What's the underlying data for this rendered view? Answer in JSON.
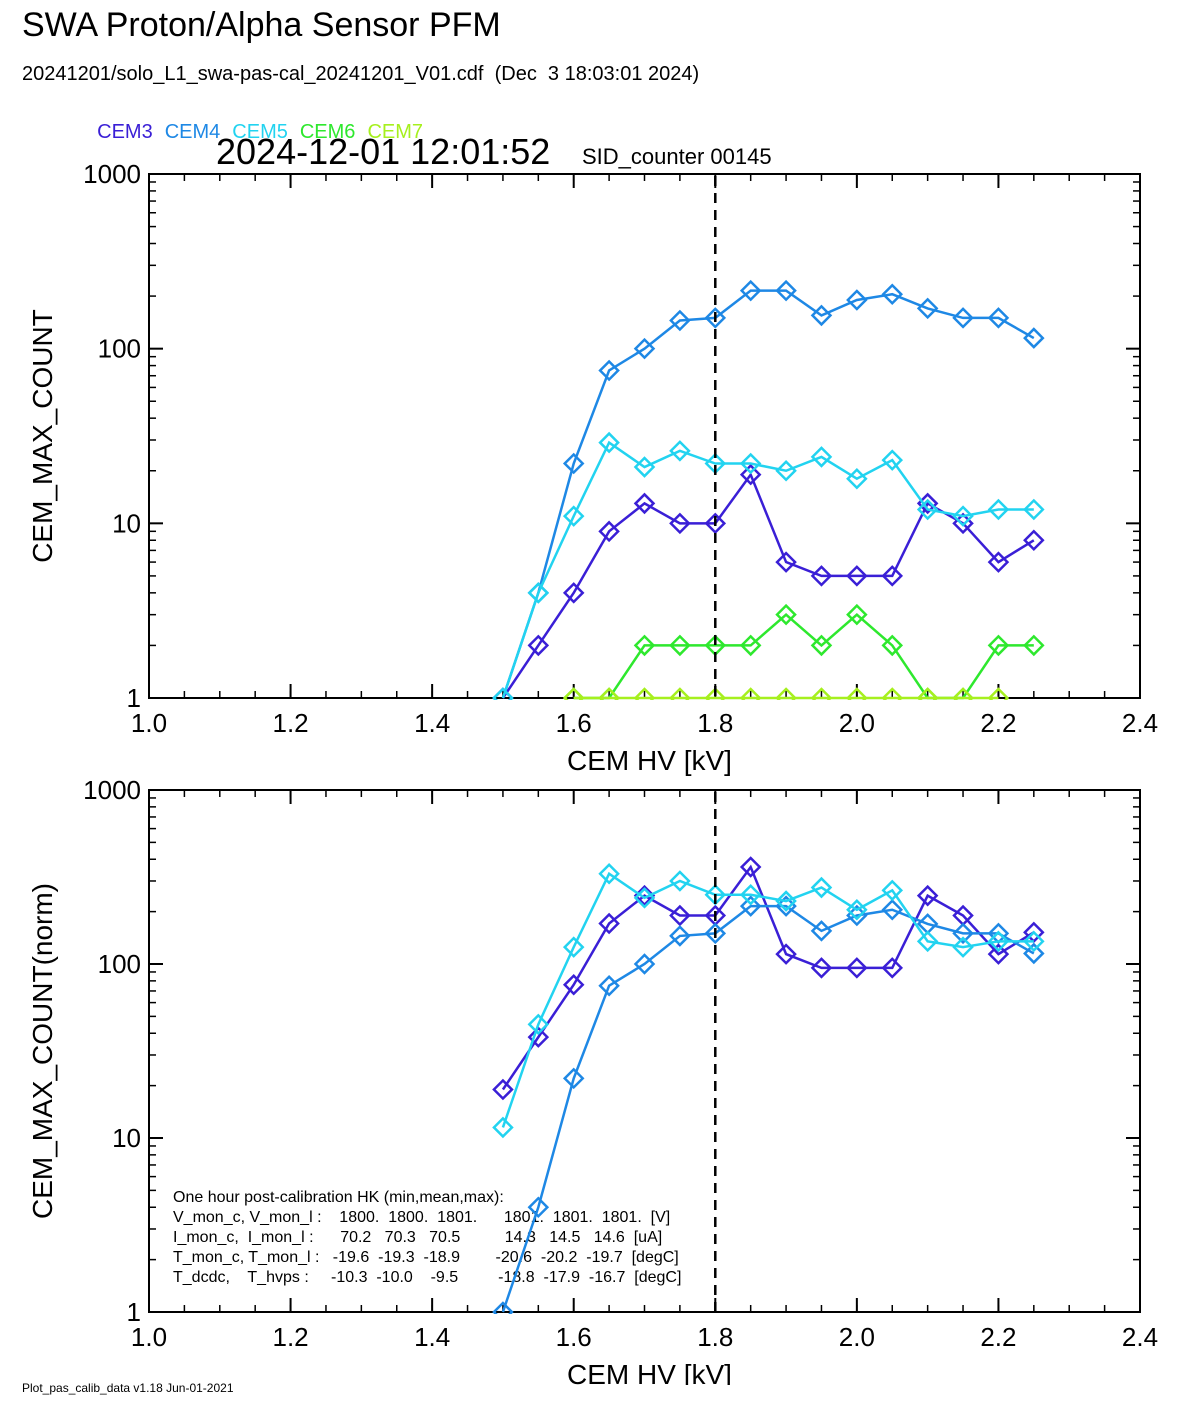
{
  "header": {
    "title": "SWA Proton/Alpha Sensor PFM",
    "file_line": "20241201/solo_L1_swa-pas-cal_20241201_V01.cdf  (Dec  3 18:03:01 2024)",
    "timestamp": "2024-12-01 12:01:52",
    "sid_counter": "SID_counter 00145"
  },
  "legend": [
    {
      "label": "CEM3",
      "color": "#3a1fd6"
    },
    {
      "label": "CEM4",
      "color": "#1e88e5"
    },
    {
      "label": "CEM5",
      "color": "#22d3f0"
    },
    {
      "label": "CEM6",
      "color": "#2ee82e"
    },
    {
      "label": "CEM7",
      "color": "#a6f01e"
    }
  ],
  "footer": "Plot_pas_calib_data v1.18 Jun-01-2021",
  "hk_box": {
    "lines": [
      "One hour post-calibration HK (min,mean,max):",
      "V_mon_c, V_mon_l :    1800.  1800.  1801.      1801.  1801.  1801.  [V]",
      "I_mon_c,  I_mon_l :      70.2   70.3   70.5          14.3   14.5   14.6  [uA]",
      "T_mon_c, T_mon_l :   -19.6  -19.3  -18.9        -20.6  -20.2  -19.7  [degC]",
      "T_dcdc,    T_hvps :     -10.3  -10.0    -9.5         -18.8  -17.9  -16.7  [degC]"
    ]
  },
  "chart_data": [
    {
      "type": "line",
      "xlabel": "CEM HV [kV]",
      "ylabel": "CEM_MAX_COUNT",
      "xlim": [
        1.0,
        2.4
      ],
      "ylim": [
        1,
        1000
      ],
      "yscale": "log",
      "xticks": [
        "1.0",
        "1.2",
        "1.4",
        "1.6",
        "1.8",
        "2.0",
        "2.2",
        "2.4"
      ],
      "yticks": [
        "1",
        "10",
        "100",
        "1000"
      ],
      "vline_x": 1.8,
      "marker": "diamond",
      "x": [
        1.5,
        1.55,
        1.6,
        1.65,
        1.7,
        1.75,
        1.8,
        1.85,
        1.9,
        1.95,
        2.0,
        2.05,
        2.1,
        2.15,
        2.2,
        2.25
      ],
      "series": [
        {
          "name": "CEM3",
          "color": "#3a1fd6",
          "values": [
            1,
            2,
            4,
            9,
            13,
            10,
            10,
            19,
            6,
            5,
            5,
            5,
            13,
            10,
            6,
            8
          ]
        },
        {
          "name": "CEM4",
          "color": "#1e88e5",
          "values": [
            1,
            4,
            22,
            75,
            100,
            145,
            150,
            215,
            215,
            155,
            190,
            205,
            170,
            150,
            150,
            115
          ]
        },
        {
          "name": "CEM5",
          "color": "#22d3f0",
          "values": [
            1,
            4,
            11,
            29,
            21,
            26,
            22,
            22,
            20,
            24,
            18,
            23,
            12,
            11,
            12,
            12
          ]
        },
        {
          "name": "CEM6",
          "color": "#2ee82e",
          "values": [
            null,
            null,
            1,
            1,
            2,
            2,
            2,
            2,
            3,
            2,
            3,
            2,
            1,
            1,
            2,
            2
          ]
        },
        {
          "name": "CEM7",
          "color": "#a6f01e",
          "values": [
            null,
            null,
            1,
            1,
            1,
            1,
            1,
            1,
            1,
            1,
            1,
            1,
            1,
            1,
            1,
            null
          ]
        }
      ]
    },
    {
      "type": "line",
      "xlabel": "CEM HV [kV]",
      "ylabel": "CEM_MAX_COUNT(norm)",
      "xlim": [
        1.0,
        2.4
      ],
      "ylim": [
        1,
        1000
      ],
      "yscale": "log",
      "xticks": [
        "1.0",
        "1.2",
        "1.4",
        "1.6",
        "1.8",
        "2.0",
        "2.2",
        "2.4"
      ],
      "yticks": [
        "1",
        "10",
        "100",
        "1000"
      ],
      "vline_x": 1.8,
      "marker": "diamond",
      "x": [
        1.5,
        1.55,
        1.6,
        1.65,
        1.7,
        1.75,
        1.8,
        1.85,
        1.9,
        1.95,
        2.0,
        2.05,
        2.1,
        2.15,
        2.2,
        2.25
      ],
      "series": [
        {
          "name": "CEM3",
          "color": "#3a1fd6",
          "values": [
            19,
            38,
            76,
            171,
            247,
            190,
            190,
            361,
            114,
            95,
            95,
            95,
            247,
            190,
            114,
            152
          ]
        },
        {
          "name": "CEM4",
          "color": "#1e88e5",
          "values": [
            1,
            4,
            22,
            75,
            100,
            145,
            150,
            215,
            215,
            155,
            190,
            205,
            170,
            150,
            150,
            115
          ]
        },
        {
          "name": "CEM5",
          "color": "#22d3f0",
          "values": [
            11.5,
            45,
            125,
            330,
            240,
            300,
            250,
            250,
            230,
            275,
            205,
            265,
            135,
            125,
            135,
            135
          ]
        }
      ]
    }
  ]
}
